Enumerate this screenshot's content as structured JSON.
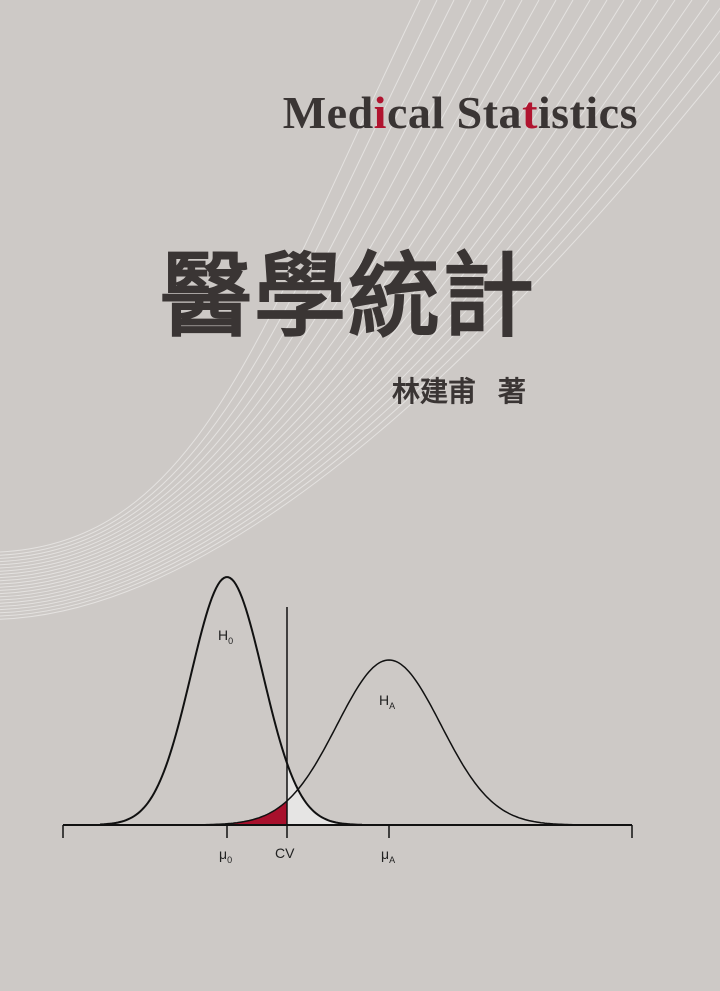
{
  "cover": {
    "title_en": {
      "part1": "Medical Sta",
      "part1_pre": "Med",
      "i_red": "i",
      "part1_post": "cal Sta",
      "t_red": "t",
      "part2": "istics"
    },
    "title_zh": "醫學統計",
    "author": "林建甫",
    "author_suffix": "著",
    "accent_color": "#b0142f",
    "text_color": "#3a3534",
    "background_color": "#cdc9c6"
  },
  "figure": {
    "h0_label": "H",
    "h0_sub": "0",
    "ha_label": "H",
    "ha_sub": "A",
    "tick_mu0": "μ",
    "tick_mu0_sub": "0",
    "tick_cv": "CV",
    "tick_muA": "μ",
    "tick_muA_sub": "A"
  }
}
